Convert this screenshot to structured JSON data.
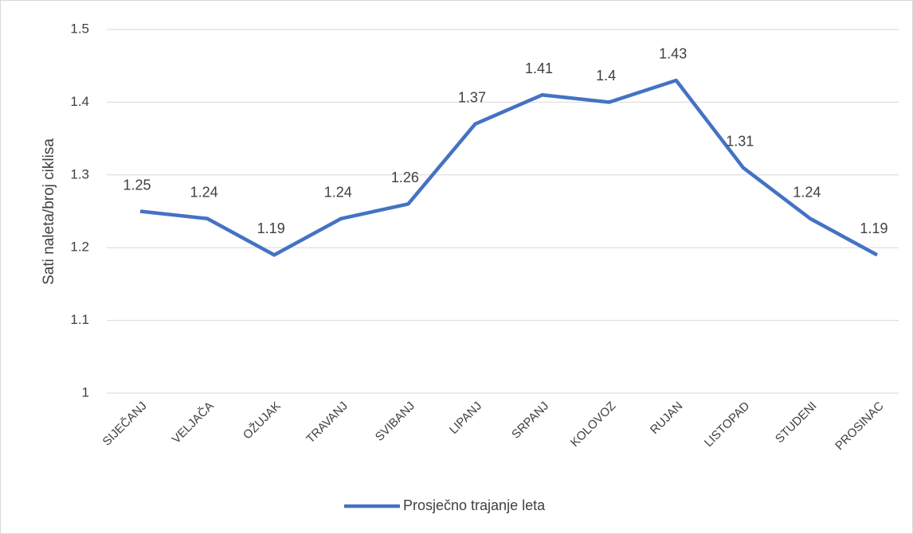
{
  "chart_data": {
    "type": "line",
    "y_label": "Sati naleta/broj ciklisa",
    "categories": [
      "SIJEČANJ",
      "VELJAČA",
      "OŽUJAK",
      "TRAVANJ",
      "SVIBANJ",
      "LIPANJ",
      "SRPANJ",
      "KOLOVOZ",
      "RUJAN",
      "LISTOPAD",
      "STUDENI",
      "PROSINAC"
    ],
    "series": [
      {
        "name": "Prosječno trajanje leta",
        "color": "#4472c4",
        "values": [
          1.25,
          1.24,
          1.19,
          1.24,
          1.26,
          1.37,
          1.41,
          1.4,
          1.43,
          1.31,
          1.24,
          1.19
        ]
      }
    ],
    "ylim": [
      1,
      1.5
    ],
    "yticks": [
      1,
      1.1,
      1.2,
      1.3,
      1.4,
      1.5
    ],
    "grid": true,
    "legend": "bottom"
  }
}
